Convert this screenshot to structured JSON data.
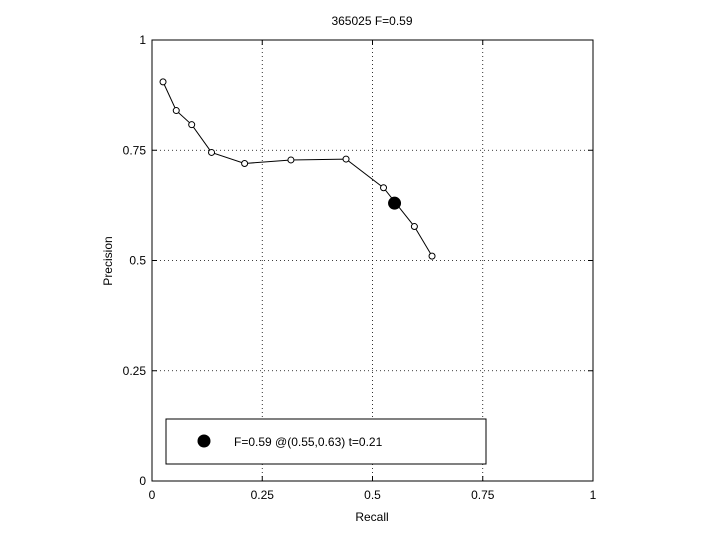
{
  "chart_data": {
    "type": "line",
    "title": "365025 F=0.59",
    "xlabel": "Recall",
    "ylabel": "Precision",
    "xlim": [
      0,
      1
    ],
    "ylim": [
      0,
      1
    ],
    "xticks": [
      0,
      0.25,
      0.5,
      0.75,
      1
    ],
    "xtick_labels": [
      "0",
      "0.25",
      "0.5",
      "0.75",
      "1"
    ],
    "yticks": [
      0,
      0.25,
      0.5,
      0.75,
      1
    ],
    "ytick_labels": [
      "0",
      "0.25",
      "0.5",
      "0.75",
      "1"
    ],
    "grid": true,
    "series": [
      {
        "x": [
          0.025,
          0.055,
          0.09,
          0.135,
          0.21,
          0.315,
          0.44,
          0.525,
          0.595,
          0.635
        ],
        "y": [
          0.905,
          0.84,
          0.808,
          0.745,
          0.72,
          0.728,
          0.73,
          0.665,
          0.577,
          0.51
        ],
        "color": "#000000"
      }
    ],
    "best_point": {
      "x": 0.55,
      "y": 0.63,
      "color": "#000000"
    },
    "legend": {
      "placement": "bottom-left",
      "text": "F=0.59 @(0.55,0.63) t=0.21"
    }
  }
}
